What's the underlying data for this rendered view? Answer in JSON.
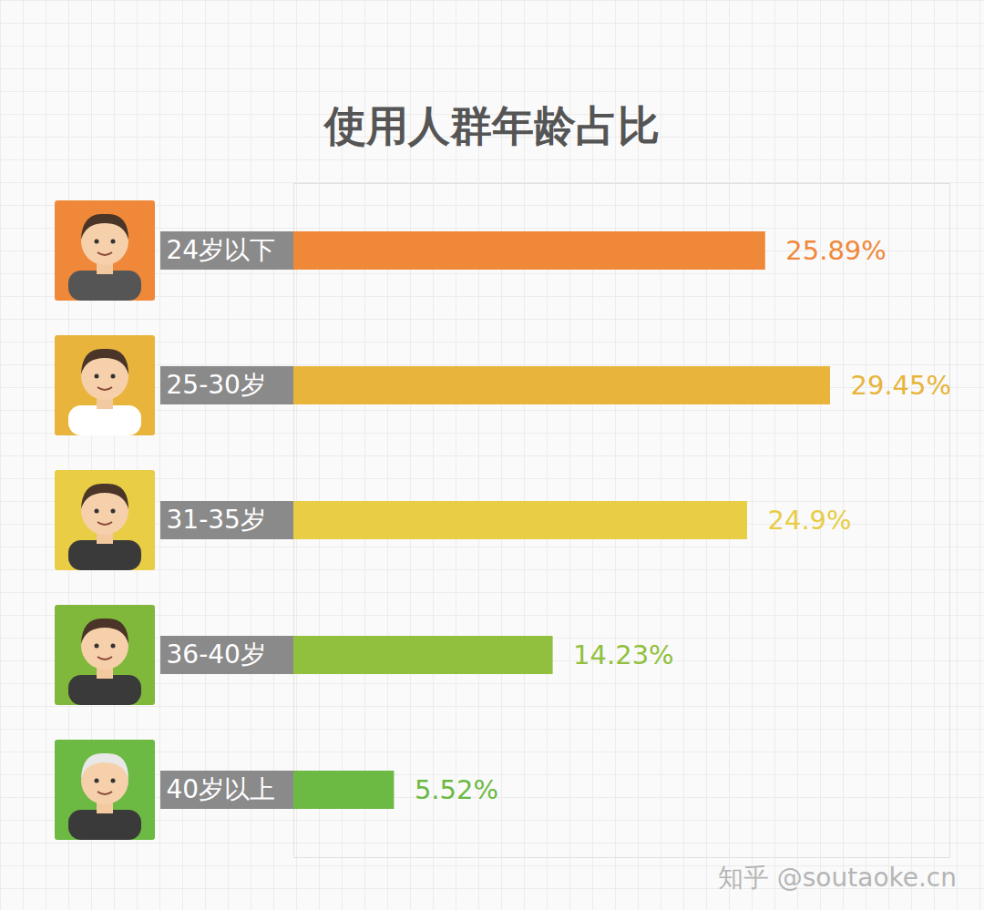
{
  "chart_data": {
    "type": "bar",
    "title": "使用人群年龄占比",
    "orientation": "horizontal",
    "categories": [
      "24岁以下",
      "25-30岁",
      "31-35岁",
      "36-40岁",
      "40岁以上"
    ],
    "values": [
      25.89,
      29.45,
      24.9,
      14.23,
      5.52
    ],
    "value_labels": [
      "25.89%",
      "29.45%",
      "24.9%",
      "14.23%",
      "5.52%"
    ],
    "colors": [
      "#f0883a",
      "#e8b43c",
      "#e8cd45",
      "#90c03e",
      "#6cb944"
    ],
    "xlim": [
      0,
      36
    ],
    "tick_labels": "y",
    "data_labels": true,
    "grid": false,
    "annotations": [
      "知乎 @soutaoke.cn"
    ]
  }
}
